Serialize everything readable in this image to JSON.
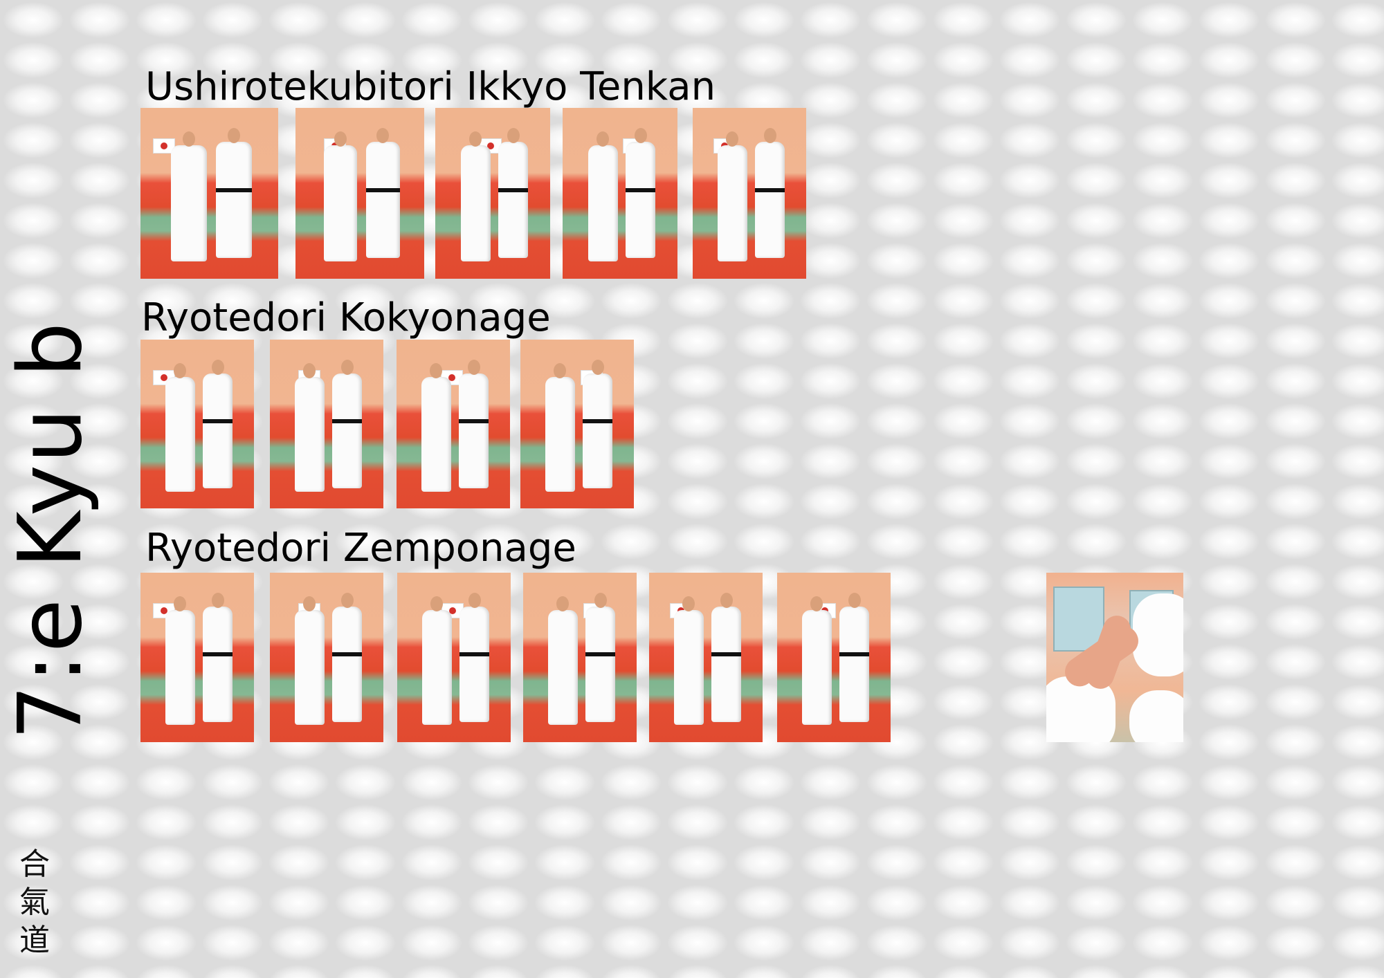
{
  "page": {
    "grade_title": "7:e Kyu b",
    "calligraphy": [
      "合",
      "氣",
      "道"
    ]
  },
  "sections": [
    {
      "title": "Ushirotekubitori Ikkyo Tenkan",
      "photo_count": 5
    },
    {
      "title": "Ryotedori Kokyonage",
      "photo_count": 4
    },
    {
      "title": "Ryotedori Zemponage",
      "photo_count": 6
    }
  ],
  "extra_photo": {
    "subject": "hand-grip-closeup"
  },
  "colors": {
    "mat_red": "#e24c2f",
    "mat_green": "#7fb58f",
    "wall": "#f0b48e",
    "text": "#000000"
  }
}
